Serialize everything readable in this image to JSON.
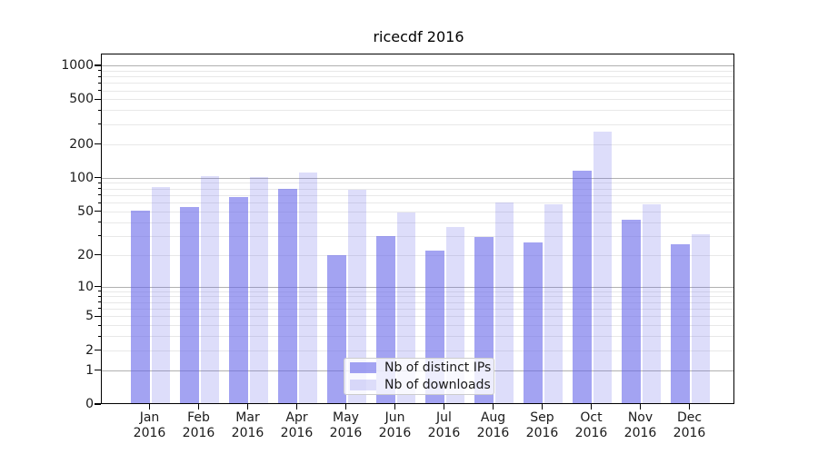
{
  "figure": {
    "title": "ricecdf 2016"
  },
  "colors": {
    "bar_base": "#6666ea",
    "distinct_ips_alpha": 0.6,
    "downloads_alpha": 0.22,
    "distinct_ips_apparent": "#a3a3f2",
    "downloads_apparent": "#ddddfa",
    "major_grid": "#b0b0b0",
    "minor_grid": "#e8e8e8",
    "spine": "#000000"
  },
  "chart_data": {
    "type": "bar",
    "title": "ricecdf 2016",
    "x_categories": [
      {
        "month": "Jan",
        "year": "2016"
      },
      {
        "month": "Feb",
        "year": "2016"
      },
      {
        "month": "Mar",
        "year": "2016"
      },
      {
        "month": "Apr",
        "year": "2016"
      },
      {
        "month": "May",
        "year": "2016"
      },
      {
        "month": "Jun",
        "year": "2016"
      },
      {
        "month": "Jul",
        "year": "2016"
      },
      {
        "month": "Aug",
        "year": "2016"
      },
      {
        "month": "Sep",
        "year": "2016"
      },
      {
        "month": "Oct",
        "year": "2016"
      },
      {
        "month": "Nov",
        "year": "2016"
      },
      {
        "month": "Dec",
        "year": "2016"
      }
    ],
    "series": [
      {
        "name": "Nb of distinct IPs",
        "values": [
          51,
          55,
          67,
          79,
          20,
          30,
          22,
          29,
          26,
          115,
          42,
          25
        ]
      },
      {
        "name": "Nb of downloads",
        "values": [
          82,
          103,
          101,
          112,
          78,
          49,
          36,
          60,
          58,
          260,
          58,
          31
        ]
      }
    ],
    "y_axis": {
      "scale": "symlog (log1p)",
      "tick_labels": [
        "0",
        "1",
        "2",
        "5",
        "10",
        "20",
        "50",
        "100",
        "200",
        "500",
        "1000"
      ],
      "tick_values": [
        0,
        1,
        2,
        5,
        10,
        20,
        50,
        100,
        200,
        500,
        1000
      ],
      "major_grid_values": [
        1,
        10,
        100,
        1000
      ],
      "ylim": [
        0,
        1240
      ],
      "grid": true
    },
    "legend": {
      "position": "lower center",
      "entries": [
        "Nb of distinct IPs",
        "Nb of downloads"
      ]
    }
  }
}
